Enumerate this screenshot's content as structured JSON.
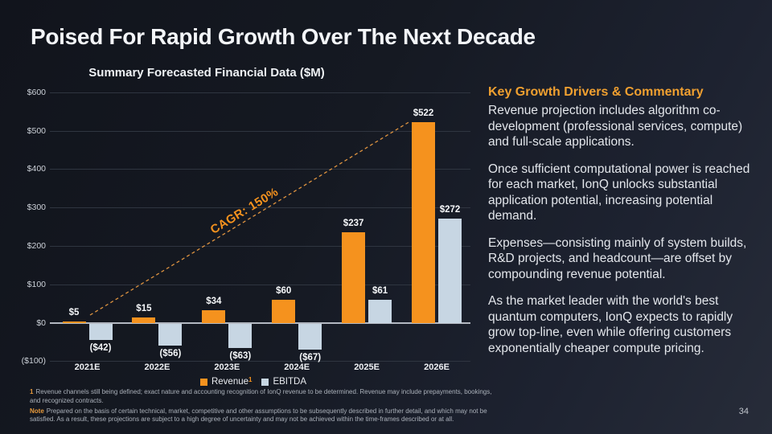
{
  "slide": {
    "title": "Poised For Rapid Growth Over The Next Decade",
    "page_number": "34"
  },
  "chart_data": {
    "type": "bar",
    "title": "Summary Forecasted Financial Data ($M)",
    "categories": [
      "2021E",
      "2022E",
      "2023E",
      "2024E",
      "2025E",
      "2026E"
    ],
    "series": [
      {
        "name": "Revenue",
        "color": "#F5921E",
        "values": [
          5,
          15,
          34,
          60,
          237,
          522
        ],
        "labels": [
          "$5",
          "$15",
          "$34",
          "$60",
          "$237",
          "$522"
        ]
      },
      {
        "name": "EBITDA",
        "color": "#C7D6E3",
        "values": [
          -42,
          -56,
          -63,
          -67,
          61,
          272
        ],
        "labels": [
          "($42)",
          "($56)",
          "($63)",
          "($67)",
          "$61",
          "$272"
        ]
      }
    ],
    "ylim": [
      -100,
      600
    ],
    "y_ticks": [
      600,
      500,
      400,
      300,
      200,
      100,
      0,
      -100
    ],
    "y_tick_labels": [
      "$600",
      "$500",
      "$400",
      "$300",
      "$200",
      "$100",
      "$0",
      "($100)"
    ],
    "grid": true,
    "legend_position": "bottom",
    "annotation": "CAGR: 150%",
    "legend": {
      "revenue_label": "Revenue",
      "revenue_superscript": "1",
      "ebitda_label": "EBITDA"
    }
  },
  "commentary": {
    "heading": "Key Growth Drivers & Commentary",
    "paragraphs": [
      "Revenue projection includes algorithm co-development (professional services, compute) and full-scale applications.",
      "Once sufficient computational power is reached for each market, IonQ unlocks substantial application potential, increasing potential demand.",
      "Expenses—consisting mainly of system builds, R&D projects, and headcount—are offset by compounding revenue potential.",
      "As the market leader with the world's best quantum computers, IonQ expects to rapidly grow top-line, even while offering customers exponentially cheaper compute pricing."
    ]
  },
  "footnotes": {
    "fn1_marker": "1",
    "fn1_text": "Revenue channels still being defined; exact nature and accounting recognition of IonQ revenue to be determined. Revenue may include prepayments, bookings, and recognized contracts.",
    "note_marker": "Note",
    "note_text": "Prepared on the basis of certain technical, market, competitive and other assumptions to be subsequently described in further detail, and which may not be satisfied. As a result, these projections are subject to a high degree of uncertainty and may not be achieved within the time-frames described or at all."
  },
  "colors": {
    "accent_orange": "#F5921E",
    "ebitda_blue": "#C7D6E3",
    "heading_orange": "#F0A030",
    "trend_line": "#DE9340"
  }
}
